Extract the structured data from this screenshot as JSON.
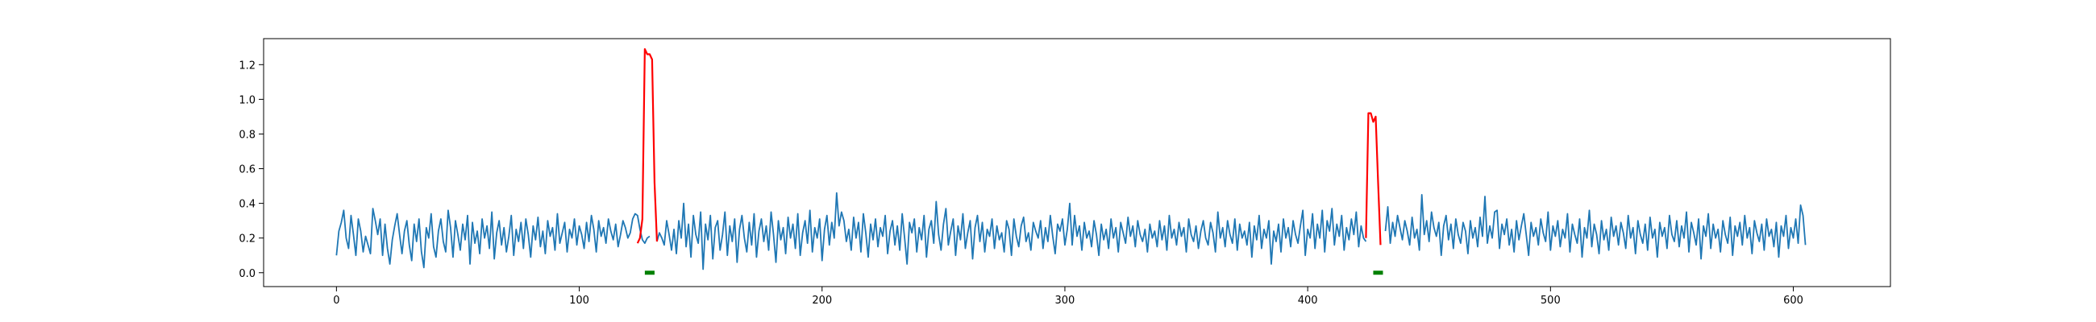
{
  "chart_data": {
    "type": "line",
    "title": "",
    "xlabel": "",
    "ylabel": "",
    "xlim": [
      -30,
      640
    ],
    "ylim": [
      -0.08,
      1.35
    ],
    "xticks": [
      0,
      100,
      200,
      300,
      400,
      500,
      600
    ],
    "xtick_labels": [
      "0",
      "100",
      "200",
      "300",
      "400",
      "500",
      "600"
    ],
    "yticks": [
      0.0,
      0.2,
      0.4,
      0.6,
      0.8,
      1.0,
      1.2
    ],
    "ytick_labels": [
      "0.0",
      "0.2",
      "0.4",
      "0.6",
      "0.8",
      "1.0",
      "1.2"
    ],
    "grid": false,
    "legend": "none",
    "colors": {
      "signal": "#1f77b4",
      "anomaly": "#ff0000",
      "marker": "#008000",
      "axes": "#000000"
    },
    "series": [
      {
        "role": "signal",
        "x_start": 0,
        "values": [
          0.1,
          0.24,
          0.29,
          0.36,
          0.2,
          0.14,
          0.33,
          0.22,
          0.1,
          0.31,
          0.24,
          0.12,
          0.21,
          0.16,
          0.11,
          0.37,
          0.3,
          0.22,
          0.31,
          0.1,
          0.28,
          0.14,
          0.05,
          0.19,
          0.27,
          0.34,
          0.22,
          0.11,
          0.24,
          0.3,
          0.16,
          0.07,
          0.28,
          0.18,
          0.31,
          0.12,
          0.03,
          0.26,
          0.2,
          0.34,
          0.15,
          0.09,
          0.24,
          0.31,
          0.18,
          0.12,
          0.36,
          0.26,
          0.09,
          0.3,
          0.22,
          0.13,
          0.28,
          0.19,
          0.33,
          0.05,
          0.29,
          0.17,
          0.24,
          0.11,
          0.31,
          0.2,
          0.27,
          0.14,
          0.35,
          0.08,
          0.23,
          0.3,
          0.16,
          0.26,
          0.12,
          0.21,
          0.33,
          0.1,
          0.25,
          0.18,
          0.29,
          0.14,
          0.31,
          0.22,
          0.09,
          0.27,
          0.19,
          0.32,
          0.15,
          0.24,
          0.11,
          0.3,
          0.21,
          0.26,
          0.13,
          0.34,
          0.17,
          0.23,
          0.29,
          0.12,
          0.25,
          0.2,
          0.31,
          0.16,
          0.27,
          0.22,
          0.14,
          0.29,
          0.18,
          0.33,
          0.25,
          0.12,
          0.3,
          0.21,
          0.26,
          0.17,
          0.31,
          0.24,
          0.19,
          0.28,
          0.15,
          0.22,
          0.3,
          0.26,
          0.2,
          0.23,
          0.31,
          0.34,
          0.33,
          0.25,
          0.19,
          0.17,
          0.2,
          0.21
        ],
        "x2_start": 132,
        "values2": [
          0.18,
          0.23,
          0.2,
          0.16,
          0.3,
          0.22,
          0.13,
          0.25,
          0.11,
          0.3,
          0.2,
          0.4,
          0.15,
          0.28,
          0.09,
          0.33,
          0.22,
          0.17,
          0.35,
          0.02,
          0.28,
          0.19,
          0.33,
          0.08,
          0.26,
          0.3,
          0.13,
          0.22,
          0.35,
          0.1,
          0.27,
          0.18,
          0.31,
          0.06,
          0.25,
          0.33,
          0.2,
          0.12,
          0.29,
          0.16,
          0.34,
          0.09,
          0.24,
          0.31,
          0.18,
          0.27,
          0.13,
          0.35,
          0.22,
          0.06,
          0.3,
          0.19,
          0.26,
          0.11,
          0.32,
          0.2,
          0.28,
          0.14,
          0.34,
          0.1,
          0.23,
          0.3,
          0.17,
          0.36,
          0.12,
          0.26,
          0.2,
          0.31,
          0.07,
          0.25,
          0.33,
          0.16,
          0.29,
          0.2,
          0.46,
          0.27,
          0.35,
          0.3,
          0.18,
          0.25,
          0.13,
          0.32,
          0.2,
          0.29,
          0.12,
          0.34,
          0.23,
          0.09,
          0.28,
          0.19,
          0.31,
          0.15,
          0.26,
          0.21,
          0.33,
          0.11,
          0.24,
          0.3,
          0.16,
          0.27,
          0.13,
          0.34,
          0.2,
          0.05,
          0.29,
          0.23,
          0.31,
          0.12,
          0.26,
          0.19,
          0.33,
          0.09,
          0.25,
          0.3,
          0.17,
          0.41,
          0.22,
          0.13,
          0.28,
          0.37,
          0.16,
          0.24,
          0.31,
          0.1,
          0.27,
          0.19,
          0.34,
          0.14,
          0.23,
          0.3,
          0.08,
          0.26,
          0.33,
          0.18,
          0.29,
          0.12,
          0.25,
          0.21,
          0.31,
          0.14,
          0.27,
          0.19,
          0.23,
          0.12,
          0.3,
          0.25,
          0.1,
          0.31,
          0.21,
          0.15,
          0.27,
          0.32,
          0.18,
          0.23,
          0.13,
          0.29,
          0.24,
          0.2,
          0.3,
          0.14,
          0.26,
          0.18,
          0.33,
          0.21,
          0.11,
          0.28,
          0.24,
          0.31,
          0.16,
          0.25,
          0.4,
          0.16,
          0.33,
          0.21,
          0.27,
          0.13,
          0.29,
          0.2,
          0.24,
          0.15,
          0.3,
          0.22,
          0.1,
          0.28,
          0.19,
          0.25,
          0.14,
          0.31,
          0.2,
          0.26,
          0.12,
          0.29,
          0.23,
          0.17,
          0.32,
          0.21,
          0.27,
          0.15,
          0.3,
          0.22,
          0.18,
          0.25,
          0.12,
          0.28,
          0.2,
          0.24,
          0.15,
          0.3,
          0.19,
          0.27,
          0.13,
          0.33,
          0.2,
          0.25,
          0.16,
          0.29,
          0.21,
          0.26,
          0.12,
          0.31,
          0.22,
          0.18,
          0.27,
          0.14,
          0.24,
          0.3,
          0.2,
          0.16,
          0.29,
          0.23,
          0.12,
          0.35,
          0.2,
          0.26,
          0.15,
          0.3,
          0.22,
          0.17,
          0.31,
          0.13,
          0.28,
          0.2,
          0.24,
          0.16,
          0.29,
          0.09,
          0.27,
          0.19,
          0.33,
          0.14,
          0.25,
          0.2,
          0.3,
          0.05,
          0.24,
          0.18,
          0.28,
          0.12,
          0.31,
          0.2,
          0.26,
          0.15,
          0.3,
          0.22,
          0.17,
          0.27,
          0.36,
          0.1,
          0.25,
          0.2,
          0.34,
          0.14,
          0.28,
          0.2,
          0.36,
          0.12,
          0.3,
          0.24,
          0.37,
          0.16,
          0.28,
          0.21,
          0.33,
          0.13,
          0.26,
          0.19,
          0.31,
          0.22,
          0.35,
          0.15,
          0.27,
          0.2,
          0.18
        ],
        "x3_start": 432,
        "values3": [
          0.24,
          0.38,
          0.17,
          0.29,
          0.21,
          0.33,
          0.26,
          0.19,
          0.3,
          0.24,
          0.16,
          0.32,
          0.2,
          0.25,
          0.13,
          0.45,
          0.22,
          0.3,
          0.18,
          0.35,
          0.26,
          0.21,
          0.29,
          0.1,
          0.27,
          0.33,
          0.19,
          0.28,
          0.14,
          0.31,
          0.22,
          0.17,
          0.29,
          0.24,
          0.11,
          0.3,
          0.2,
          0.26,
          0.15,
          0.32,
          0.21,
          0.44,
          0.17,
          0.27,
          0.2,
          0.35,
          0.36,
          0.14,
          0.28,
          0.22,
          0.31,
          0.16,
          0.25,
          0.12,
          0.3,
          0.19,
          0.27,
          0.34,
          0.22,
          0.1,
          0.29,
          0.21,
          0.26,
          0.16,
          0.31,
          0.23,
          0.18,
          0.35,
          0.13,
          0.27,
          0.21,
          0.3,
          0.15,
          0.25,
          0.2,
          0.34,
          0.12,
          0.28,
          0.22,
          0.17,
          0.31,
          0.09,
          0.26,
          0.2,
          0.36,
          0.15,
          0.28,
          0.22,
          0.11,
          0.3,
          0.19,
          0.25,
          0.13,
          0.32,
          0.21,
          0.27,
          0.16,
          0.29,
          0.23,
          0.14,
          0.33,
          0.2,
          0.26,
          0.11,
          0.3,
          0.22,
          0.17,
          0.28,
          0.13,
          0.32,
          0.2,
          0.25,
          0.09,
          0.29,
          0.21,
          0.26,
          0.14,
          0.33,
          0.22,
          0.18,
          0.3,
          0.15,
          0.27,
          0.2,
          0.35,
          0.12,
          0.29,
          0.23,
          0.16,
          0.31,
          0.08,
          0.27,
          0.21,
          0.34,
          0.14,
          0.28,
          0.2,
          0.25,
          0.12,
          0.3,
          0.22,
          0.17,
          0.32,
          0.1,
          0.27,
          0.21,
          0.29,
          0.16,
          0.33,
          0.2,
          0.26,
          0.11,
          0.3,
          0.23,
          0.18,
          0.28,
          0.13,
          0.31,
          0.21,
          0.25,
          0.15,
          0.29,
          0.09,
          0.27,
          0.21,
          0.33,
          0.14,
          0.26,
          0.2,
          0.31,
          0.17,
          0.39,
          0.33,
          0.16
        ]
      },
      {
        "role": "anomaly",
        "segments": [
          {
            "x_start": 124,
            "values": [
              0.17,
              0.2,
              0.31,
              1.29,
              1.26,
              1.26,
              1.23,
              0.52,
              0.18
            ]
          },
          {
            "x_start": 424,
            "values": [
              0.2,
              0.92,
              0.92,
              0.87,
              0.9,
              0.52,
              0.16
            ]
          }
        ]
      }
    ],
    "markers": [
      {
        "x_from": 127,
        "x_to": 131,
        "y": 0.0
      },
      {
        "x_from": 427,
        "x_to": 431,
        "y": 0.0
      }
    ]
  }
}
